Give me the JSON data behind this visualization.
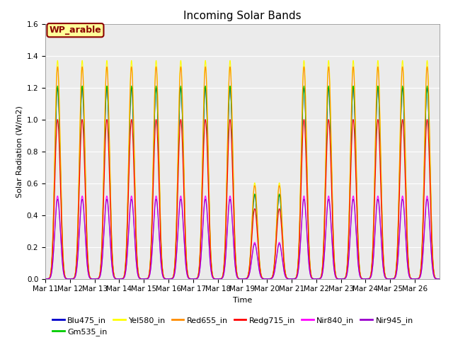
{
  "title": "Incoming Solar Bands",
  "xlabel": "Time",
  "ylabel": "Solar Radiation (W/m2)",
  "ylim": [
    0.0,
    1.6
  ],
  "annotation_text": "WP_arable",
  "annotation_color": "#8B0000",
  "annotation_bg": "#FFFF99",
  "annotation_border": "#8B0000",
  "bg_color": "#EBEBEB",
  "series": [
    {
      "name": "Blu475_in",
      "color": "#0000CC",
      "scale": 1.2
    },
    {
      "name": "Gm535_in",
      "color": "#00CC00",
      "scale": 1.21
    },
    {
      "name": "Yel580_in",
      "color": "#FFFF00",
      "scale": 1.37
    },
    {
      "name": "Red655_in",
      "color": "#FF8C00",
      "scale": 1.33
    },
    {
      "name": "Redg715_in",
      "color": "#FF0000",
      "scale": 1.0
    },
    {
      "name": "Nir840_in",
      "color": "#FF00FF",
      "scale": 0.52
    },
    {
      "name": "Nir945_in",
      "color": "#9900CC",
      "scale": 0.5
    }
  ],
  "x_ticks": [
    "Mar 11",
    "Mar 12",
    "Mar 13",
    "Mar 14",
    "Mar 15",
    "Mar 16",
    "Mar 17",
    "Mar 18",
    "Mar 19",
    "Mar 20",
    "Mar 21",
    "Mar 22",
    "Mar 23",
    "Mar 24",
    "Mar 25",
    "Mar 26"
  ],
  "day_peaks": [
    1.0,
    1.0,
    1.0,
    1.0,
    1.0,
    1.0,
    1.0,
    1.0,
    0.44,
    0.44,
    1.0,
    1.0,
    1.0,
    1.0,
    1.0,
    1.0
  ],
  "n_days": 16,
  "pts_per_day": 200,
  "power": 8,
  "title_fontsize": 11,
  "label_fontsize": 8,
  "legend_fontsize": 8,
  "tick_fontsize": 7.5
}
